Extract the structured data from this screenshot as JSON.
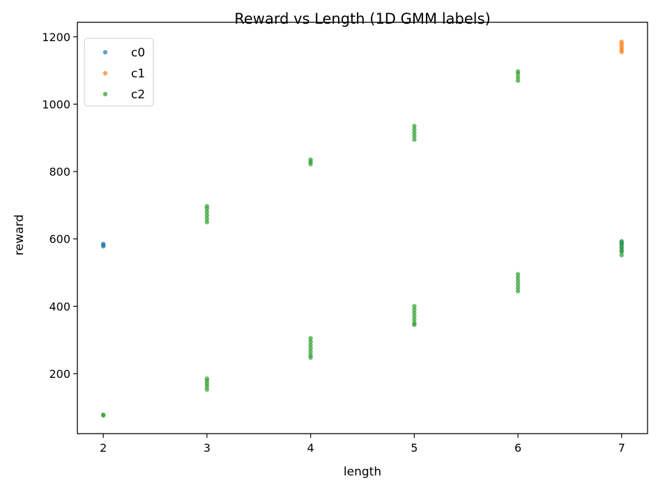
{
  "chart_data": {
    "type": "scatter",
    "title": "Reward vs Length (1D GMM labels)",
    "xlabel": "length",
    "ylabel": "reward",
    "xlim": [
      1.75,
      7.25
    ],
    "ylim": [
      22,
      1243
    ],
    "xticks": [
      "2",
      "3",
      "4",
      "5",
      "6",
      "7"
    ],
    "yticks": [
      "200",
      "400",
      "600",
      "800",
      "1000",
      "1200"
    ],
    "grid": false,
    "legend_position": "top-left",
    "series": [
      {
        "name": "c0",
        "color": "#1f77b4",
        "points": [
          [
            2,
            585
          ],
          [
            2,
            578
          ],
          [
            2,
            582
          ],
          [
            7,
            590
          ],
          [
            7,
            575
          ],
          [
            7,
            565
          ],
          [
            7,
            585
          ]
        ]
      },
      {
        "name": "c1",
        "color": "#ff7f0e",
        "points": [
          [
            7,
            1185
          ],
          [
            7,
            1178
          ],
          [
            7,
            1170
          ],
          [
            7,
            1162
          ],
          [
            7,
            1155
          ]
        ]
      },
      {
        "name": "c2",
        "color": "#2ca02c",
        "points": [
          [
            2,
            78
          ],
          [
            2,
            76
          ],
          [
            3,
            697
          ],
          [
            3,
            690
          ],
          [
            3,
            680
          ],
          [
            3,
            670
          ],
          [
            3,
            660
          ],
          [
            3,
            650
          ],
          [
            3,
            185
          ],
          [
            3,
            178
          ],
          [
            3,
            170
          ],
          [
            3,
            162
          ],
          [
            3,
            153
          ],
          [
            4,
            835
          ],
          [
            4,
            828
          ],
          [
            4,
            822
          ],
          [
            4,
            305
          ],
          [
            4,
            295
          ],
          [
            4,
            285
          ],
          [
            4,
            275
          ],
          [
            4,
            265
          ],
          [
            4,
            255
          ],
          [
            4,
            248
          ],
          [
            5,
            935
          ],
          [
            5,
            925
          ],
          [
            5,
            915
          ],
          [
            5,
            905
          ],
          [
            5,
            895
          ],
          [
            5,
            400
          ],
          [
            5,
            390
          ],
          [
            5,
            380
          ],
          [
            5,
            370
          ],
          [
            5,
            360
          ],
          [
            5,
            350
          ],
          [
            5,
            345
          ],
          [
            6,
            1097
          ],
          [
            6,
            1090
          ],
          [
            6,
            1080
          ],
          [
            6,
            1070
          ],
          [
            6,
            495
          ],
          [
            6,
            485
          ],
          [
            6,
            475
          ],
          [
            6,
            465
          ],
          [
            6,
            455
          ],
          [
            6,
            445
          ],
          [
            7,
            593
          ],
          [
            7,
            582
          ],
          [
            7,
            572
          ],
          [
            7,
            562
          ],
          [
            7,
            552
          ]
        ]
      }
    ]
  }
}
